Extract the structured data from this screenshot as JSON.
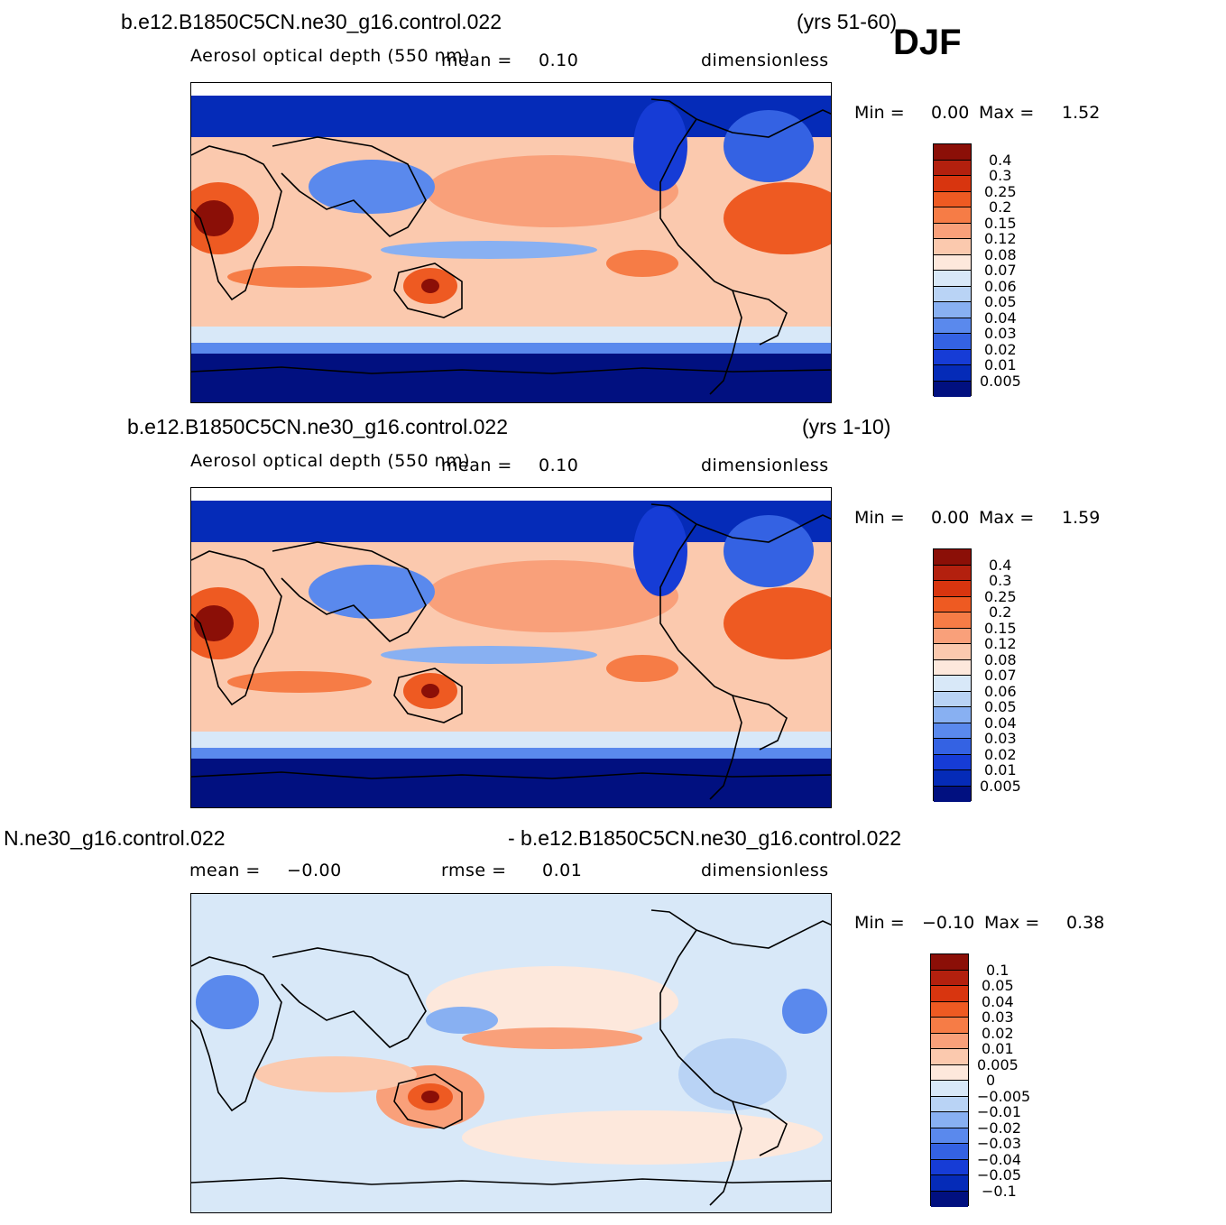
{
  "header": {
    "season": "DJF"
  },
  "panels": [
    {
      "case_left": "b.e12.B1850C5CN.ne30_g16.control.022",
      "case_right": "(yrs 51-60)",
      "variable": "Aerosol optical depth (550 nm)",
      "mean_label": "mean =",
      "mean_value": "0.10",
      "units": "dimensionless",
      "min_label": "Min =",
      "min_value": "0.00",
      "max_label": "Max =",
      "max_value": "1.52"
    },
    {
      "case_left": "b.e12.B1850C5CN.ne30_g16.control.022",
      "case_right": "(yrs 1-10)",
      "variable": "Aerosol optical depth (550 nm)",
      "mean_label": "mean =",
      "mean_value": "0.10",
      "units": "dimensionless",
      "min_label": "Min =",
      "min_value": "0.00",
      "max_label": "Max =",
      "max_value": "1.59"
    },
    {
      "case_left": "N.ne30_g16.control.022",
      "case_right": "- b.e12.B1850C5CN.ne30_g16.control.022",
      "mean_label": "mean =",
      "mean_value": "−0.00",
      "rmse_label": "rmse =",
      "rmse_value": "0.01",
      "units": "dimensionless",
      "min_label": "Min =",
      "min_value": "−0.10",
      "max_label": "Max =",
      "max_value": "0.38"
    }
  ],
  "chart_data": [
    {
      "type": "heatmap",
      "title": "Aerosol optical depth (550 nm)",
      "units": "dimensionless",
      "mean": 0.1,
      "min": 0.0,
      "max": 1.52,
      "colorbar_levels": [
        "0.4",
        "0.3",
        "0.25",
        "0.2",
        "0.15",
        "0.12",
        "0.08",
        "0.07",
        "0.06",
        "0.05",
        "0.04",
        "0.03",
        "0.02",
        "0.01",
        "0.005"
      ],
      "colorbar_colors": [
        "#8b0f07",
        "#b3200e",
        "#d8350f",
        "#ee5a22",
        "#f67c46",
        "#f9a07a",
        "#fbc9ae",
        "#fde8dc",
        "#d8e8f8",
        "#b9d3f5",
        "#88b0f2",
        "#5a89ed",
        "#3462e3",
        "#163cd6",
        "#052bb8",
        "#011080"
      ]
    },
    {
      "type": "heatmap",
      "title": "Aerosol optical depth (550 nm)",
      "units": "dimensionless",
      "mean": 0.1,
      "min": 0.0,
      "max": 1.59,
      "colorbar_levels": [
        "0.4",
        "0.3",
        "0.25",
        "0.2",
        "0.15",
        "0.12",
        "0.08",
        "0.07",
        "0.06",
        "0.05",
        "0.04",
        "0.03",
        "0.02",
        "0.01",
        "0.005"
      ],
      "colorbar_colors": [
        "#8b0f07",
        "#b3200e",
        "#d8350f",
        "#ee5a22",
        "#f67c46",
        "#f9a07a",
        "#fbc9ae",
        "#fde8dc",
        "#d8e8f8",
        "#b9d3f5",
        "#88b0f2",
        "#5a89ed",
        "#3462e3",
        "#163cd6",
        "#052bb8",
        "#011080"
      ]
    },
    {
      "type": "heatmap",
      "units": "dimensionless",
      "mean": -0.0,
      "rmse": 0.01,
      "min": -0.1,
      "max": 0.38,
      "colorbar_levels": [
        "0.1",
        "0.05",
        "0.04",
        "0.03",
        "0.02",
        "0.01",
        "0.005",
        "0",
        "−0.005",
        "−0.01",
        "−0.02",
        "−0.03",
        "−0.04",
        "−0.05",
        "−0.1"
      ],
      "colorbar_colors": [
        "#8b0f07",
        "#b3200e",
        "#d8350f",
        "#ee5a22",
        "#f67c46",
        "#f9a07a",
        "#fbc9ae",
        "#fde8dc",
        "#d8e8f8",
        "#b9d3f5",
        "#88b0f2",
        "#5a89ed",
        "#3462e3",
        "#163cd6",
        "#052bb8",
        "#011080"
      ]
    }
  ]
}
